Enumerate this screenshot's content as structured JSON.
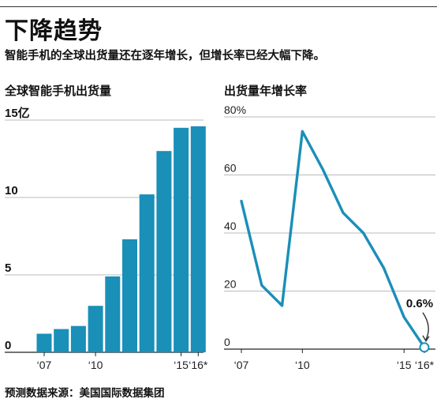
{
  "headline": "下降趋势",
  "subtitle": "智能手机的全球出货量还在逐年增长，但增长率已经大幅下降。",
  "source": "预测数据来源：美国国际数据集团",
  "chart_data": [
    {
      "type": "bar",
      "title": "全球智能手机出货量",
      "unit": "亿",
      "color": "#1a8fb8",
      "categories": [
        "2007",
        "2008",
        "2009",
        "2010",
        "2011",
        "2012",
        "2013",
        "2014",
        "2015",
        "2016"
      ],
      "values": [
        1.2,
        1.5,
        1.7,
        3.0,
        4.9,
        7.3,
        10.2,
        13.0,
        14.5,
        14.6
      ],
      "ylim": [
        0,
        15
      ],
      "yticks": [
        {
          "v": 0,
          "label": "0"
        },
        {
          "v": 5,
          "label": "5"
        },
        {
          "v": 10,
          "label": "10"
        },
        {
          "v": 15,
          "label": "15亿"
        }
      ],
      "xticks": [
        {
          "v": 2007,
          "label": "‘07"
        },
        {
          "v": 2010,
          "label": "‘10"
        },
        {
          "v": 2015,
          "label": "‘15"
        },
        {
          "v": 2016,
          "label": "‘16*"
        }
      ],
      "grid": true
    },
    {
      "type": "line",
      "title": "出货量年增长率",
      "unit": "%",
      "color": "#1a8fb8",
      "x": [
        2007,
        2008,
        2009,
        2010,
        2011,
        2012,
        2013,
        2014,
        2015,
        2016
      ],
      "y": [
        51,
        22,
        15,
        75,
        62,
        47,
        40,
        28,
        11,
        0.6
      ],
      "ylim": [
        0,
        80
      ],
      "yticks": [
        {
          "v": 0,
          "label": "0"
        },
        {
          "v": 20,
          "label": "20"
        },
        {
          "v": 40,
          "label": "40"
        },
        {
          "v": 60,
          "label": "60"
        },
        {
          "v": 80,
          "label": "80%"
        }
      ],
      "xticks": [
        {
          "v": 2007,
          "label": "‘07"
        },
        {
          "v": 2010,
          "label": "‘10"
        },
        {
          "v": 2015,
          "label": "‘15"
        },
        {
          "v": 2016,
          "label": "‘16*"
        }
      ],
      "annotation": {
        "x": 2016,
        "y": 0.6,
        "label": "0.6%"
      },
      "grid": true
    }
  ]
}
